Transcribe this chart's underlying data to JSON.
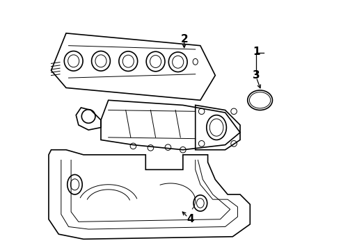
{
  "title": "",
  "background_color": "#ffffff",
  "line_color": "#000000",
  "label_color": "#000000",
  "fig_width": 4.9,
  "fig_height": 3.6,
  "dpi": 100,
  "label_fontsize": 11,
  "label_fontweight": "bold"
}
